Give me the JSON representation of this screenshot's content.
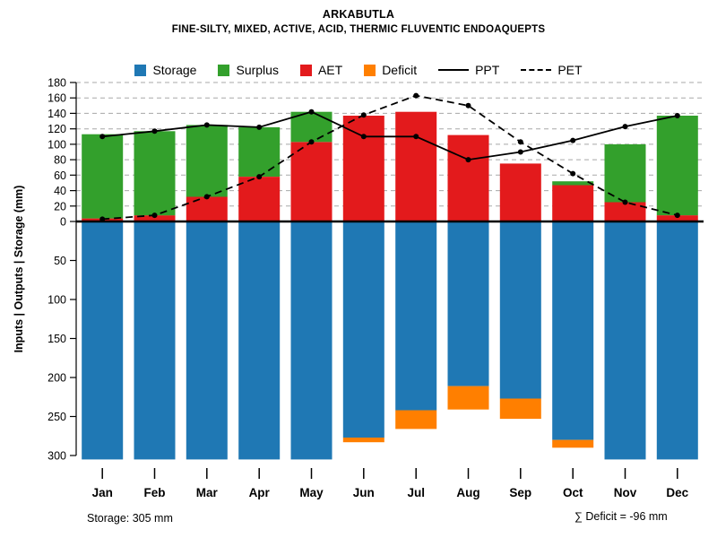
{
  "title": "ARKABUTLA",
  "subtitle": "FINE-SILTY, MIXED, ACTIVE, ACID, THERMIC FLUVENTIC ENDOAQUEPTS",
  "y_axis_label": "Inputs | Outputs | Storage  (mm)",
  "footer": {
    "storage_note": "Storage: 305 mm",
    "deficit_note": "∑ Deficit = -96 mm"
  },
  "legend": {
    "items": [
      {
        "label": "Storage",
        "swatch": "square",
        "color": "#1F78B4"
      },
      {
        "label": "Surplus",
        "swatch": "square",
        "color": "#33A02C"
      },
      {
        "label": "AET",
        "swatch": "square",
        "color": "#E31A1C"
      },
      {
        "label": "Deficit",
        "swatch": "square",
        "color": "#FF7F00"
      },
      {
        "label": "PPT",
        "swatch": "line-solid",
        "color": "#000000"
      },
      {
        "label": "PET",
        "swatch": "line-dashed",
        "color": "#000000"
      }
    ]
  },
  "chart_data": {
    "type": "bar",
    "title": "ARKABUTLA",
    "categories": [
      "Jan",
      "Feb",
      "Mar",
      "Apr",
      "May",
      "Jun",
      "Jul",
      "Aug",
      "Sep",
      "Oct",
      "Nov",
      "Dec"
    ],
    "upper_axis": {
      "lim": [
        0,
        180
      ],
      "ticks": [
        0,
        20,
        40,
        60,
        80,
        100,
        120,
        140,
        160,
        180
      ],
      "grid": true
    },
    "lower_axis": {
      "lim": [
        0,
        300
      ],
      "ticks": [
        50,
        100,
        150,
        200,
        250,
        300
      ],
      "grid": false
    },
    "ylabel": "Inputs | Outputs | Storage  (mm)",
    "series": [
      {
        "name": "Storage",
        "type": "bar",
        "direction": "down",
        "color": "#1F78B4",
        "values": [
          305,
          305,
          305,
          305,
          305,
          277,
          242,
          211,
          227,
          280,
          305,
          305
        ]
      },
      {
        "name": "Deficit",
        "type": "bar",
        "direction": "down",
        "stacked_below": "Storage",
        "color": "#FF7F00",
        "values": [
          0,
          0,
          0,
          0,
          0,
          6,
          24,
          30,
          26,
          10,
          0,
          0
        ]
      },
      {
        "name": "AET",
        "type": "bar",
        "direction": "up",
        "color": "#E31A1C",
        "values": [
          4,
          8,
          32,
          58,
          103,
          137,
          142,
          112,
          75,
          47,
          25,
          8
        ]
      },
      {
        "name": "Surplus",
        "type": "bar",
        "direction": "up",
        "stacked_on": "AET",
        "color": "#33A02C",
        "values": [
          109,
          109,
          93,
          64,
          39,
          0,
          0,
          0,
          0,
          5,
          75,
          129
        ]
      },
      {
        "name": "PPT",
        "type": "line",
        "dash": "solid",
        "color": "#000000",
        "values": [
          110,
          117,
          125,
          122,
          142,
          110,
          110,
          80,
          90,
          105,
          123,
          137
        ]
      },
      {
        "name": "PET",
        "type": "line",
        "dash": "dashed",
        "color": "#000000",
        "values": [
          3,
          8,
          32,
          58,
          103,
          138,
          163,
          150,
          103,
          62,
          25,
          8
        ]
      }
    ],
    "annotations": {
      "storage_total": "305 mm",
      "deficit_sum": "-96 mm"
    }
  }
}
